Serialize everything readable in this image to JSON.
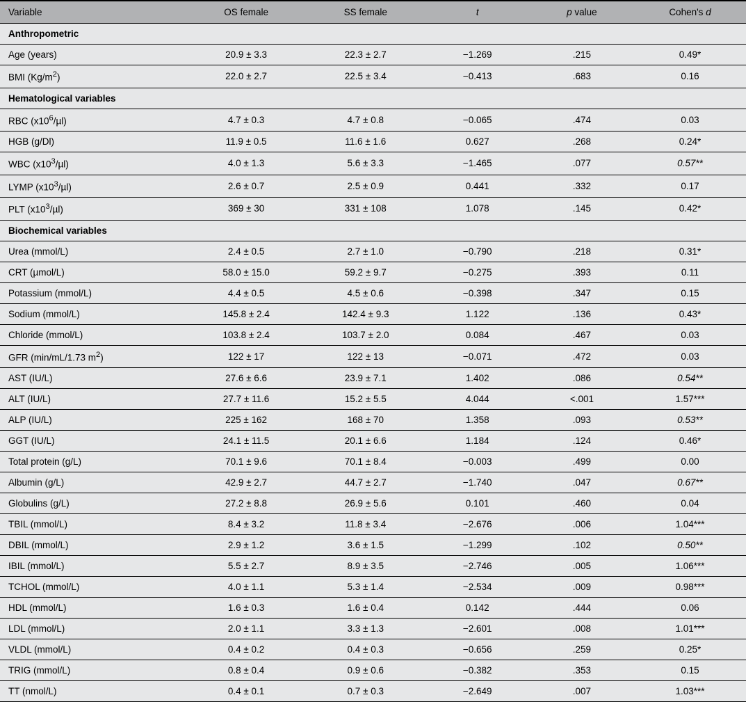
{
  "columns": {
    "c0": "Variable",
    "c1": "OS female",
    "c2": "SS female",
    "c3_html": "<span class=\"italic\">t</span>",
    "c4_html": "<span class=\"italic\">p</span> value",
    "c5_html": "Cohen's <span class=\"italic\">d</span>"
  },
  "col_widths_pct": [
    25,
    16,
    16,
    14,
    14,
    15
  ],
  "colors": {
    "header_bg": "#b1b2b4",
    "body_bg": "#e6e7e8",
    "border": "#000000",
    "text": "#000000"
  },
  "sections": [
    {
      "title": "Anthropometric",
      "rows": [
        {
          "var": "Age (years)",
          "os": "20.9 ± 3.3",
          "ss": "22.3 ± 2.7",
          "t": "−1.269",
          "p": ".215",
          "d": "0.49*",
          "d_italic": false
        },
        {
          "var_html": "BMI (Kg/m<sup>2</sup>)",
          "os": "22.0 ± 2.7",
          "ss": "22.5 ± 3.4",
          "t": "−0.413",
          "p": ".683",
          "d": "0.16",
          "d_italic": false
        }
      ]
    },
    {
      "title": "Hematological variables",
      "rows": [
        {
          "var_html": "RBC (x10<sup>6</sup>/µl)",
          "os": "4.7 ± 0.3",
          "ss": "4.7 ± 0.8",
          "t": "−0.065",
          "p": ".474",
          "d": "0.03",
          "d_italic": false
        },
        {
          "var": "HGB (g/Dl)",
          "os": "11.9 ± 0.5",
          "ss": "11.6 ± 1.6",
          "t": "0.627",
          "p": ".268",
          "d": "0.24*",
          "d_italic": false
        },
        {
          "var_html": "WBC (x10<sup>3</sup>/µl)",
          "os": "4.0 ± 1.3",
          "ss": "5.6 ± 3.3",
          "t": "−1.465",
          "p": ".077",
          "d": "0.57**",
          "d_italic": true
        },
        {
          "var_html": "LYMP (x10<sup>3</sup>/µl)",
          "os": "2.6 ± 0.7",
          "ss": "2.5 ± 0.9",
          "t": "0.441",
          "p": ".332",
          "d": "0.17",
          "d_italic": false
        },
        {
          "var_html": "PLT (x10<sup>3</sup>/µl)",
          "os": "369 ± 30",
          "ss": "331 ± 108",
          "t": "1.078",
          "p": ".145",
          "d": "0.42*",
          "d_italic": false
        }
      ]
    },
    {
      "title": "Biochemical variables",
      "rows": [
        {
          "var": "Urea (mmol/L)",
          "os": "2.4 ± 0.5",
          "ss": "2.7 ± 1.0",
          "t": "−0.790",
          "p": ".218",
          "d": "0.31*",
          "d_italic": false
        },
        {
          "var": "CRT (µmol/L)",
          "os": "58.0 ± 15.0",
          "ss": "59.2 ± 9.7",
          "t": "−0.275",
          "p": ".393",
          "d": "0.11",
          "d_italic": false
        },
        {
          "var": "Potassium (mmol/L)",
          "os": "4.4 ± 0.5",
          "ss": "4.5 ± 0.6",
          "t": "−0.398",
          "p": ".347",
          "d": "0.15",
          "d_italic": false
        },
        {
          "var": "Sodium (mmol/L)",
          "os": "145.8 ± 2.4",
          "ss": "142.4 ± 9.3",
          "t": "1.122",
          "p": ".136",
          "d": "0.43*",
          "d_italic": false
        },
        {
          "var": "Chloride (mmol/L)",
          "os": "103.8 ± 2.4",
          "ss": "103.7 ± 2.0",
          "t": "0.084",
          "p": ".467",
          "d": "0.03",
          "d_italic": false
        },
        {
          "var_html": "GFR (min/mL/1.73 m<sup>2</sup>)",
          "os": "122 ± 17",
          "ss": "122 ± 13",
          "t": "−0.071",
          "p": ".472",
          "d": "0.03",
          "d_italic": false
        },
        {
          "var": "AST (IU/L)",
          "os": "27.6 ± 6.6",
          "ss": "23.9 ± 7.1",
          "t": "1.402",
          "p": ".086",
          "d": "0.54**",
          "d_italic": true
        },
        {
          "var": "ALT (IU/L)",
          "os": "27.7 ± 11.6",
          "ss": "15.2 ± 5.5",
          "t": "4.044",
          "p": "<.001",
          "d": "1.57***",
          "d_italic": false
        },
        {
          "var": "ALP (IU/L)",
          "os": "225 ± 162",
          "ss": "168 ± 70",
          "t": "1.358",
          "p": ".093",
          "d": "0.53**",
          "d_italic": true
        },
        {
          "var": "GGT (IU/L)",
          "os": "24.1 ± 11.5",
          "ss": "20.1 ± 6.6",
          "t": "1.184",
          "p": ".124",
          "d": "0.46*",
          "d_italic": false
        },
        {
          "var": "Total protein (g/L)",
          "os": "70.1 ± 9.6",
          "ss": "70.1 ± 8.4",
          "t": "−0.003",
          "p": ".499",
          "d": "0.00",
          "d_italic": false
        },
        {
          "var": "Albumin (g/L)",
          "os": "42.9 ± 2.7",
          "ss": "44.7 ± 2.7",
          "t": "−1.740",
          "p": ".047",
          "d": "0.67**",
          "d_italic": true
        },
        {
          "var": "Globulins (g/L)",
          "os": "27.2 ± 8.8",
          "ss": "26.9 ± 5.6",
          "t": "0.101",
          "p": ".460",
          "d": "0.04",
          "d_italic": false
        },
        {
          "var": "TBIL (mmol/L)",
          "os": "8.4 ± 3.2",
          "ss": "11.8 ± 3.4",
          "t": "−2.676",
          "p": ".006",
          "d": "1.04***",
          "d_italic": false
        },
        {
          "var": "DBIL (mmol/L)",
          "os": "2.9 ± 1.2",
          "ss": "3.6 ± 1.5",
          "t": "−1.299",
          "p": ".102",
          "d": "0.50**",
          "d_italic": true
        },
        {
          "var": "IBIL (mmol/L)",
          "os": "5.5 ± 2.7",
          "ss": "8.9 ± 3.5",
          "t": "−2.746",
          "p": ".005",
          "d": "1.06***",
          "d_italic": false
        },
        {
          "var": "TCHOL (mmol/L)",
          "os": "4.0 ± 1.1",
          "ss": "5.3 ± 1.4",
          "t": "−2.534",
          "p": ".009",
          "d": "0.98***",
          "d_italic": false
        },
        {
          "var": "HDL (mmol/L)",
          "os": "1.6 ± 0.3",
          "ss": "1.6 ± 0.4",
          "t": "0.142",
          "p": ".444",
          "d": "0.06",
          "d_italic": false
        },
        {
          "var": "LDL (mmol/L)",
          "os": "2.0 ± 1.1",
          "ss": "3.3 ± 1.3",
          "t": "−2.601",
          "p": ".008",
          "d": "1.01***",
          "d_italic": false
        },
        {
          "var": "VLDL (mmol/L)",
          "os": "0.4 ± 0.2",
          "ss": "0.4 ± 0.3",
          "t": "−0.656",
          "p": ".259",
          "d": "0.25*",
          "d_italic": false
        },
        {
          "var": "TRIG (mmol/L)",
          "os": "0.8 ± 0.4",
          "ss": "0.9 ± 0.6",
          "t": "−0.382",
          "p": ".353",
          "d": "0.15",
          "d_italic": false
        },
        {
          "var": "TT (nmol/L)",
          "os": "0.4 ± 0.1",
          "ss": "0.7 ± 0.3",
          "t": "−2.649",
          "p": ".007",
          "d": "1.03***",
          "d_italic": false
        }
      ]
    }
  ]
}
